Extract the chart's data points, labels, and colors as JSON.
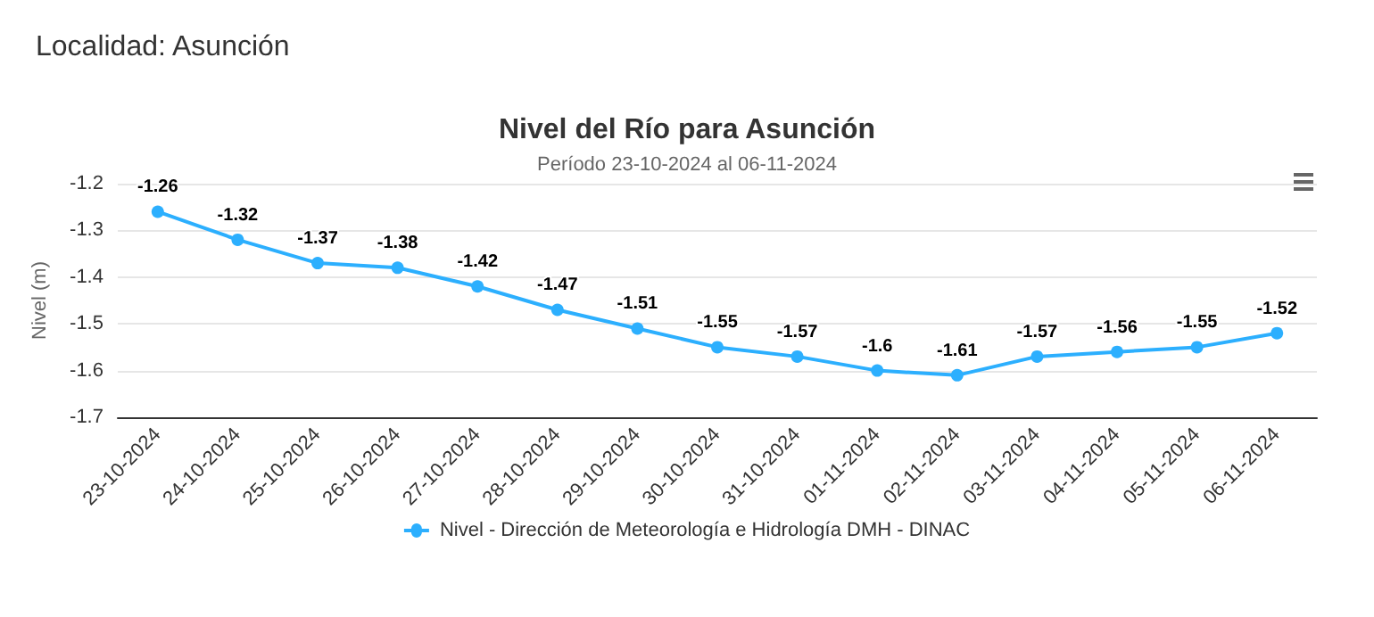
{
  "chart_data": {
    "type": "line",
    "title": "Nivel del Río para Asunción",
    "subtitle": "Período 23-10-2024 al 06-11-2024",
    "ylabel": "Nivel (m)",
    "annotations": [
      "Localidad: Asunción"
    ],
    "categories": [
      "23-10-2024",
      "24-10-2024",
      "25-10-2024",
      "26-10-2024",
      "27-10-2024",
      "28-10-2024",
      "29-10-2024",
      "30-10-2024",
      "31-10-2024",
      "01-11-2024",
      "02-11-2024",
      "03-11-2024",
      "04-11-2024",
      "05-11-2024",
      "06-11-2024"
    ],
    "series": [
      {
        "name": "Nivel - Dirección de Meteorología e Hidrología DMH - DINAC",
        "color": "#2caffe",
        "values": [
          -1.26,
          -1.32,
          -1.37,
          -1.38,
          -1.42,
          -1.47,
          -1.51,
          -1.55,
          -1.57,
          -1.6,
          -1.61,
          -1.57,
          -1.56,
          -1.55,
          -1.52
        ]
      }
    ],
    "ylim": [
      -1.7,
      -1.2
    ],
    "yticks": [
      -1.7,
      -1.6,
      -1.5,
      -1.4,
      -1.3,
      -1.2
    ],
    "grid": "y",
    "legend": "bottom",
    "marker": "circle",
    "line_style": "solid",
    "data_labels": true
  }
}
